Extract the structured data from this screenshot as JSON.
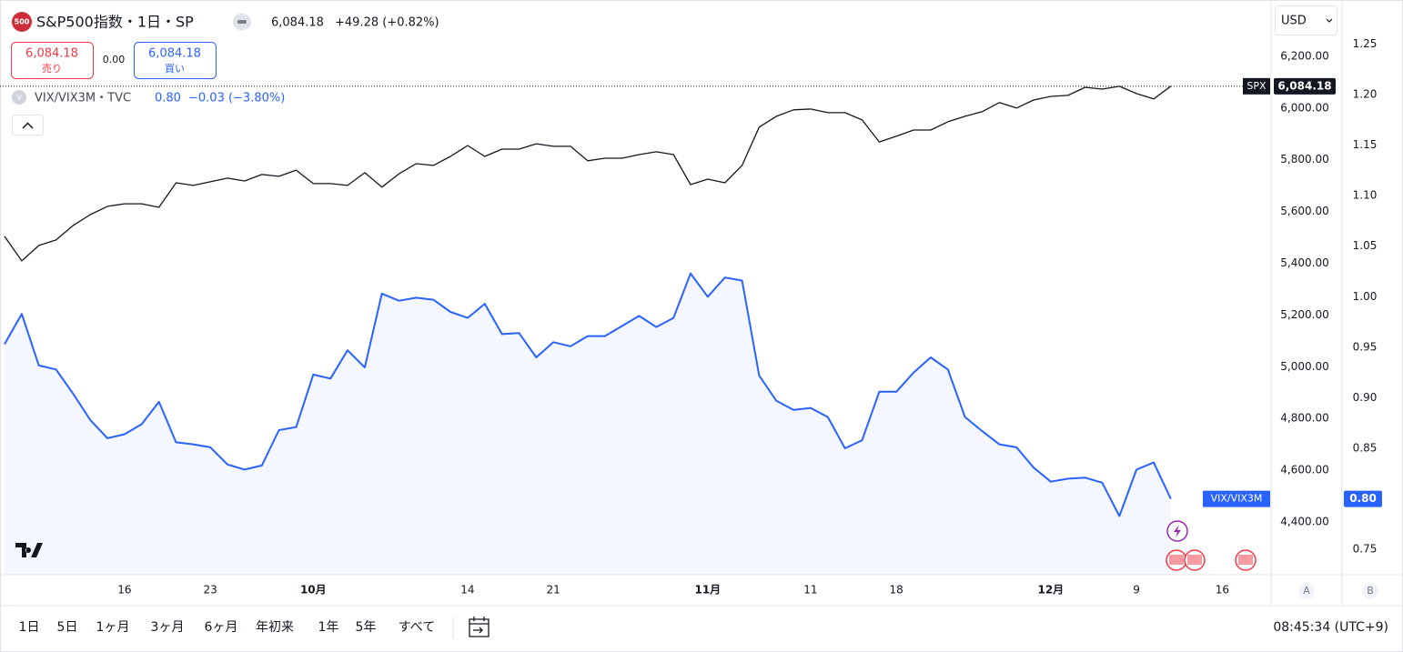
{
  "ui": {
    "symbol_icon": "500",
    "symbol": "S&P500指数・1日・SP",
    "price": "6,084.18",
    "change": "+49.28 (+0.82%)",
    "sell_price": "6,084.18",
    "sell": "売り",
    "spread": "0.00",
    "buy_price": "6,084.18",
    "buy": "買い",
    "compare_icon": "V",
    "compare_symbol": "VIX/VIX3M・TVC",
    "compare_price": "0.80",
    "compare_change": "−0.03 (−3.80%)",
    "currency": "USD",
    "spx_tag": "SPX",
    "spx_last": "6,084.18",
    "vix_tag": "VIX/VIX3M",
    "vix_last": "0.80",
    "scale_a": "A",
    "scale_b": "B",
    "ranges": [
      "1日",
      "5日",
      "1ヶ月",
      "3ヶ月",
      "6ヶ月",
      "年初来",
      "1年",
      "5年",
      "すべて"
    ],
    "clock": "08:45:34 (UTC+9)"
  },
  "chart_data": {
    "type": "line",
    "categories": [
      null,
      null,
      null,
      null,
      null,
      null,
      null,
      "16",
      null,
      null,
      null,
      null,
      "23",
      null,
      null,
      null,
      null,
      null,
      "10月",
      null,
      null,
      null,
      null,
      null,
      null,
      null,
      null,
      "14",
      null,
      null,
      null,
      null,
      "21",
      null,
      null,
      null,
      null,
      null,
      null,
      null,
      null,
      "11月",
      null,
      null,
      null,
      null,
      null,
      "11",
      null,
      null,
      null,
      null,
      "18",
      null,
      null,
      null,
      null,
      null,
      null,
      null,
      null,
      "12月",
      null,
      null,
      null,
      null,
      "9",
      null,
      null,
      null,
      null,
      "16"
    ],
    "series": [
      {
        "name": "SPX",
        "color": "#131722",
        "values": [
          5504,
          5409,
          5469,
          5490,
          5546,
          5588,
          5620,
          5630,
          5630,
          5616,
          5711,
          5701,
          5715,
          5729,
          5718,
          5743,
          5736,
          5760,
          5708,
          5708,
          5701,
          5750,
          5694,
          5746,
          5785,
          5778,
          5813,
          5855,
          5813,
          5841,
          5841,
          5862,
          5852,
          5852,
          5796,
          5806,
          5806,
          5820,
          5831,
          5820,
          5704,
          5725,
          5711,
          5778,
          5926,
          5968,
          5993,
          5996,
          5982,
          5982,
          5954,
          5869,
          5891,
          5915,
          5915,
          5947,
          5968,
          5986,
          6021,
          6000,
          6031,
          6045,
          6049,
          6080,
          6073,
          6084,
          6056,
          6035,
          6084.18,
          null,
          null,
          null
        ]
      },
      {
        "name": "VIX/VIX3M",
        "color": "#2962ff",
        "axis": "y2",
        "values": [
          0.953,
          0.983,
          0.932,
          0.928,
          0.904,
          0.878,
          0.86,
          0.864,
          0.874,
          0.896,
          0.856,
          0.854,
          0.851,
          0.834,
          0.829,
          0.833,
          0.868,
          0.871,
          0.923,
          0.919,
          0.947,
          0.93,
          1.003,
          0.996,
          0.999,
          0.997,
          0.985,
          0.979,
          0.993,
          0.963,
          0.964,
          0.94,
          0.955,
          0.951,
          0.961,
          0.961,
          0.971,
          0.981,
          0.97,
          0.979,
          1.023,
          1.0,
          1.019,
          1.016,
          0.922,
          0.897,
          0.888,
          0.89,
          0.881,
          0.85,
          0.858,
          0.906,
          0.906,
          0.925,
          0.94,
          0.928,
          0.881,
          0.867,
          0.854,
          0.851,
          0.831,
          0.817,
          0.82,
          0.821,
          0.816,
          0.783,
          0.829,
          0.836,
          0.8,
          null,
          null,
          null
        ]
      }
    ],
    "ylim": [
      4196,
      6400
    ],
    "yticks": [
      {
        "value": 4400,
        "label": "4,400.00"
      },
      {
        "value": 4600,
        "label": "4,600.00"
      },
      {
        "value": 4800,
        "label": "4,800.00"
      },
      {
        "value": 5000,
        "label": "5,000.00"
      },
      {
        "value": 5200,
        "label": "5,200.00"
      },
      {
        "value": 5400,
        "label": "5,400.00"
      },
      {
        "value": 5600,
        "label": "5,600.00"
      },
      {
        "value": 5800,
        "label": "5,800.00"
      },
      {
        "value": 6000,
        "label": "6,000.00"
      },
      {
        "value": 6200,
        "label": "6,200.00"
      }
    ],
    "y2lim": [
      0.725,
      1.289
    ],
    "y2ticks": [
      0.75,
      0.85,
      {
        "value": 0.9,
        "label": "0.90"
      },
      0.95,
      {
        "value": 1,
        "label": "1.00"
      },
      1.05,
      {
        "value": 1.1,
        "label": "1.10"
      },
      1.15,
      {
        "value": 1.2,
        "label": "1.20"
      },
      1.25
    ],
    "grid": false
  }
}
